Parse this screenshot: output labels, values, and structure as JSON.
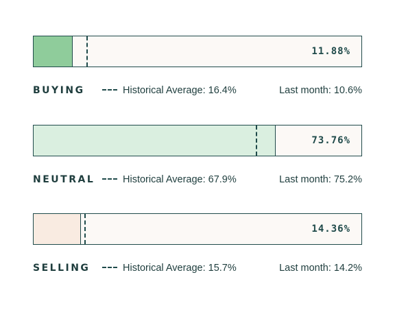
{
  "chart_data": {
    "type": "bar",
    "orientation": "horizontal",
    "xlim": [
      0,
      100
    ],
    "unit": "%",
    "rows": [
      {
        "key": "buying",
        "label": "BUYING",
        "value": 11.88,
        "value_text": "11.88%",
        "historical_average": 16.4,
        "historical_text": "Historical Average: 16.4%",
        "last_month": 10.6,
        "last_month_text": "Last month: 10.6%",
        "fill_color": "#8fcc9b"
      },
      {
        "key": "neutral",
        "label": "NEUTRAL",
        "value": 73.76,
        "value_text": "73.76%",
        "historical_average": 67.9,
        "historical_text": "Historical Average: 67.9%",
        "last_month": 75.2,
        "last_month_text": "Last month: 75.2%",
        "fill_color": "#daefe0"
      },
      {
        "key": "selling",
        "label": "SELLING",
        "value": 14.36,
        "value_text": "14.36%",
        "historical_average": 15.7,
        "historical_text": "Historical Average: 15.7%",
        "last_month": 14.2,
        "last_month_text": "Last month: 14.2%",
        "fill_color": "#f9ebe1"
      }
    ]
  },
  "colors": {
    "border": "#1f4a4a",
    "text": "#1e3d3d",
    "track": "#fcf9f6"
  }
}
